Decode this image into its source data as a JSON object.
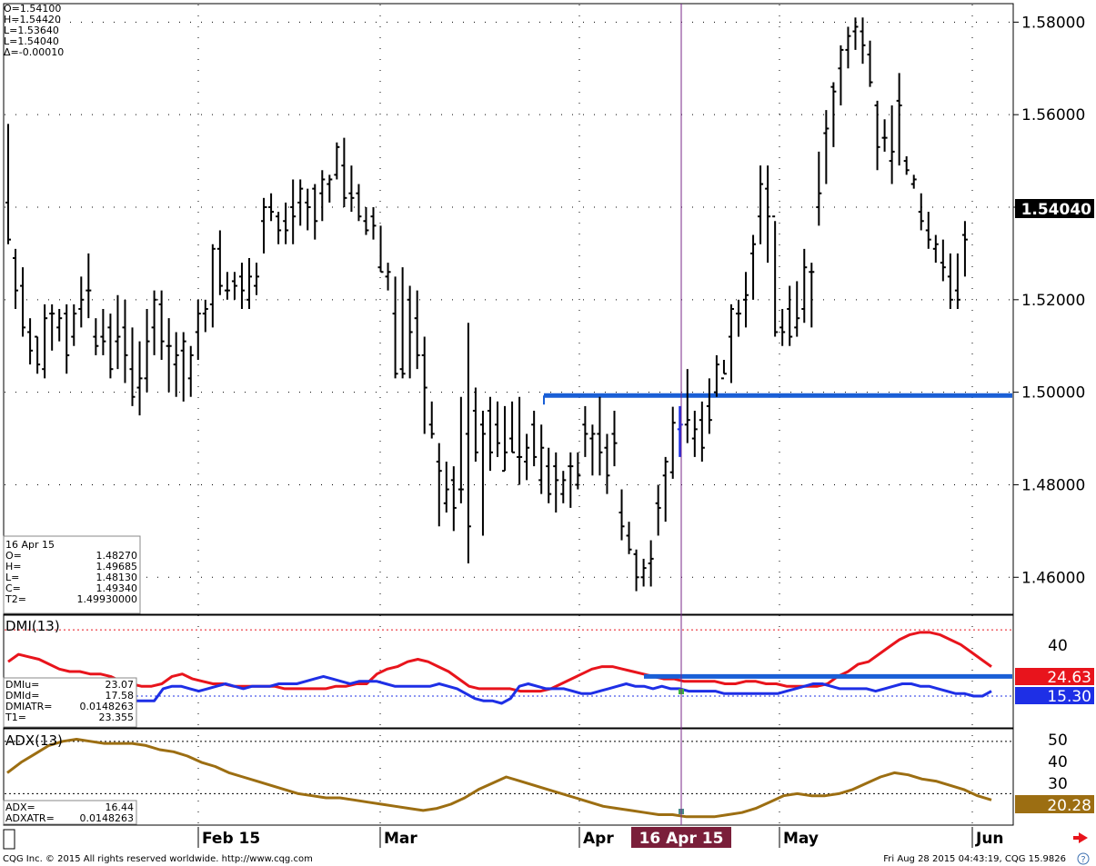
{
  "ohlc_readout": {
    "o": "O=1.54100",
    "h": "H=1.54420",
    "l1": "L=1.53640",
    "l2": "L=1.54040",
    "delta": "Δ=-0.00010"
  },
  "cursor_box": {
    "date": "16 Apr 15",
    "rows": [
      {
        "k": "O=",
        "v": "1.48270"
      },
      {
        "k": "H=",
        "v": "1.49685"
      },
      {
        "k": "L=",
        "v": "1.48130"
      },
      {
        "k": "C=",
        "v": "1.49340"
      },
      {
        "k": "T2=",
        "v": "1.49930000"
      }
    ]
  },
  "price_axis": {
    "ticks": [
      "1.58000",
      "1.56000",
      "1.54000",
      "1.52000",
      "1.50000",
      "1.48000",
      "1.46000"
    ],
    "last_price": "1.54040"
  },
  "dmi": {
    "title": "DMI(13)",
    "ticks": [
      "40"
    ],
    "plus_value": "24.63",
    "minus_value": "15.30",
    "rows": [
      {
        "k": "DMIu=",
        "v": "23.07"
      },
      {
        "k": "DMId=",
        "v": "17.58"
      },
      {
        "k": "DMIATR=",
        "v": "0.0148263"
      },
      {
        "k": "T1=",
        "v": "23.355"
      }
    ]
  },
  "adx": {
    "title": "ADX(13)",
    "ticks": [
      "50",
      "40",
      "30"
    ],
    "value": "20.28",
    "rows": [
      {
        "k": "ADX=",
        "v": "16.44"
      },
      {
        "k": "ADXATR=",
        "v": "0.0148263"
      }
    ]
  },
  "time_axis": {
    "labels": [
      "Feb 15",
      "Mar",
      "Apr",
      "May",
      "Jun"
    ],
    "cursor_label": "16 Apr 15"
  },
  "footer": {
    "left": "CQG Inc. © 2015 All rights reserved worldwide. http://www.cqg.com",
    "right": "Fri Aug 28 2015 04:43:19, CQG 15.9826"
  },
  "colors": {
    "bars": "#000000",
    "trendline": "#1a5fd6",
    "dmi_plus": "#e8141c",
    "dmi_minus": "#1e2fe6",
    "adx": "#9c6e12",
    "cursor": "#7a2a8a",
    "cursor_label_bg": "#7a1f3a"
  },
  "chart_data": {
    "type": "ohlc",
    "ylim": [
      1.452,
      1.584
    ],
    "hline": 1.4993,
    "bars": [
      [
        1.541,
        1.558,
        1.532,
        1.533
      ],
      [
        1.529,
        1.531,
        1.518,
        1.522
      ],
      [
        1.523,
        1.527,
        1.512,
        1.514
      ],
      [
        1.513,
        1.516,
        1.506,
        1.509
      ],
      [
        1.512,
        1.512,
        1.504,
        1.506
      ],
      [
        1.505,
        1.519,
        1.503,
        1.516
      ],
      [
        1.517,
        1.519,
        1.509,
        1.517
      ],
      [
        1.514,
        1.518,
        1.511,
        1.516
      ],
      [
        1.517,
        1.519,
        1.504,
        1.508
      ],
      [
        1.512,
        1.519,
        1.51,
        1.517
      ],
      [
        1.518,
        1.525,
        1.514,
        1.52
      ],
      [
        1.522,
        1.53,
        1.516,
        1.522
      ],
      [
        1.512,
        1.516,
        1.508,
        1.51
      ],
      [
        1.512,
        1.518,
        1.508,
        1.511
      ],
      [
        1.514,
        1.517,
        1.503,
        1.505
      ],
      [
        1.511,
        1.521,
        1.505,
        1.512
      ],
      [
        1.514,
        1.52,
        1.502,
        1.508
      ],
      [
        1.505,
        1.514,
        1.497,
        1.499
      ],
      [
        1.501,
        1.511,
        1.495,
        1.503
      ],
      [
        1.503,
        1.518,
        1.5,
        1.511
      ],
      [
        1.514,
        1.522,
        1.508,
        1.52
      ],
      [
        1.519,
        1.522,
        1.507,
        1.511
      ],
      [
        1.51,
        1.516,
        1.5,
        1.51
      ],
      [
        1.506,
        1.513,
        1.499,
        1.508
      ],
      [
        1.509,
        1.513,
        1.498,
        1.511
      ],
      [
        1.503,
        1.51,
        1.499,
        1.508
      ],
      [
        1.513,
        1.52,
        1.507,
        1.517
      ],
      [
        1.517,
        1.52,
        1.513,
        1.518
      ],
      [
        1.519,
        1.532,
        1.514,
        1.531
      ],
      [
        1.531,
        1.535,
        1.521,
        1.523
      ],
      [
        1.522,
        1.526,
        1.52,
        1.522
      ],
      [
        1.524,
        1.526,
        1.52,
        1.523
      ],
      [
        1.525,
        1.528,
        1.518,
        1.522
      ],
      [
        1.52,
        1.529,
        1.518,
        1.525
      ],
      [
        1.523,
        1.528,
        1.521,
        1.525
      ],
      [
        1.537,
        1.542,
        1.53,
        1.54
      ],
      [
        1.54,
        1.543,
        1.537,
        1.539
      ],
      [
        1.538,
        1.539,
        1.532,
        1.535
      ],
      [
        1.537,
        1.541,
        1.532,
        1.535
      ],
      [
        1.54,
        1.546,
        1.532,
        1.538
      ],
      [
        1.541,
        1.546,
        1.536,
        1.544
      ],
      [
        1.541,
        1.544,
        1.535,
        1.54
      ],
      [
        1.544,
        1.545,
        1.533,
        1.537
      ],
      [
        1.543,
        1.548,
        1.537,
        1.546
      ],
      [
        1.545,
        1.547,
        1.541,
        1.546
      ],
      [
        1.547,
        1.554,
        1.546,
        1.553
      ],
      [
        1.549,
        1.555,
        1.54,
        1.542
      ],
      [
        1.543,
        1.549,
        1.539,
        1.542
      ],
      [
        1.543,
        1.545,
        1.537,
        1.538
      ],
      [
        1.537,
        1.54,
        1.534,
        1.535
      ],
      [
        1.538,
        1.54,
        1.533,
        1.536
      ],
      [
        1.527,
        1.536,
        1.526,
        1.526
      ],
      [
        1.525,
        1.528,
        1.522,
        1.526
      ],
      [
        1.517,
        1.525,
        1.503,
        1.504
      ],
      [
        1.505,
        1.527,
        1.503,
        1.504
      ],
      [
        1.52,
        1.523,
        1.503,
        1.513
      ],
      [
        1.516,
        1.522,
        1.505,
        1.508
      ],
      [
        1.508,
        1.512,
        1.491,
        1.501
      ],
      [
        1.493,
        1.498,
        1.49,
        1.491
      ],
      [
        1.485,
        1.489,
        1.471,
        1.483
      ],
      [
        1.476,
        1.485,
        1.474,
        1.479
      ],
      [
        1.481,
        1.484,
        1.47,
        1.475
      ],
      [
        1.479,
        1.499,
        1.476,
        1.479
      ],
      [
        1.491,
        1.515,
        1.463,
        1.471
      ],
      [
        1.496,
        1.501,
        1.485,
        1.487
      ],
      [
        1.493,
        1.496,
        1.469,
        1.491
      ],
      [
        1.496,
        1.499,
        1.483,
        1.487
      ],
      [
        1.493,
        1.498,
        1.486,
        1.489
      ],
      [
        1.483,
        1.497,
        1.483,
        1.487
      ],
      [
        1.49,
        1.498,
        1.487,
        1.487
      ],
      [
        1.486,
        1.499,
        1.48,
        1.486
      ],
      [
        1.485,
        1.491,
        1.481,
        1.488
      ],
      [
        1.493,
        1.496,
        1.484,
        1.486
      ],
      [
        1.481,
        1.493,
        1.478,
        1.488
      ],
      [
        1.484,
        1.488,
        1.476,
        1.478
      ],
      [
        1.484,
        1.487,
        1.474,
        1.481
      ],
      [
        1.478,
        1.483,
        1.476,
        1.481
      ],
      [
        1.484,
        1.487,
        1.475,
        1.484
      ],
      [
        1.48,
        1.487,
        1.479,
        1.482
      ],
      [
        1.493,
        1.497,
        1.486,
        1.491
      ],
      [
        1.49,
        1.493,
        1.482,
        1.491
      ],
      [
        1.491,
        1.499,
        1.482,
        1.487
      ],
      [
        1.488,
        1.491,
        1.478,
        1.482
      ],
      [
        1.491,
        1.496,
        1.484,
        1.489
      ],
      [
        1.474,
        1.479,
        1.468,
        1.471
      ],
      [
        1.469,
        1.472,
        1.465,
        1.466
      ],
      [
        1.465,
        1.466,
        1.457,
        1.46
      ],
      [
        1.46,
        1.464,
        1.458,
        1.462
      ],
      [
        1.463,
        1.468,
        1.458,
        1.464
      ],
      [
        1.476,
        1.48,
        1.469,
        1.475
      ],
      [
        1.482,
        1.486,
        1.472,
        1.485
      ],
      [
        1.4827,
        1.49685,
        1.4813,
        1.4934
      ],
      [
        1.492,
        1.497,
        1.486,
        1.493
      ],
      [
        1.493,
        1.505,
        1.489,
        1.494
      ],
      [
        1.49,
        1.496,
        1.486,
        1.492
      ],
      [
        1.494,
        1.498,
        1.485,
        1.488
      ],
      [
        1.497,
        1.503,
        1.491,
        1.494
      ],
      [
        1.5,
        1.508,
        1.499,
        1.506
      ],
      [
        1.503,
        1.507,
        1.504,
        1.504
      ],
      [
        1.512,
        1.519,
        1.502,
        1.518
      ],
      [
        1.517,
        1.52,
        1.512,
        1.517
      ],
      [
        1.52,
        1.526,
        1.514,
        1.521
      ],
      [
        1.53,
        1.534,
        1.52,
        1.532
      ],
      [
        1.538,
        1.549,
        1.532,
        1.545
      ],
      [
        1.544,
        1.549,
        1.528,
        1.538
      ],
      [
        1.538,
        1.537,
        1.512,
        1.513
      ],
      [
        1.514,
        1.518,
        1.51,
        1.513
      ],
      [
        1.518,
        1.523,
        1.51,
        1.512
      ],
      [
        1.514,
        1.524,
        1.512,
        1.516
      ],
      [
        1.518,
        1.531,
        1.515,
        1.527
      ],
      [
        1.526,
        1.528,
        1.514,
        1.526
      ],
      [
        1.54,
        1.552,
        1.536,
        1.543
      ],
      [
        1.556,
        1.561,
        1.545,
        1.557
      ],
      [
        1.566,
        1.567,
        1.553,
        1.565
      ],
      [
        1.57,
        1.575,
        1.562,
        1.574
      ],
      [
        1.574,
        1.579,
        1.57,
        1.577
      ],
      [
        1.578,
        1.581,
        1.574,
        1.579
      ],
      [
        1.578,
        1.581,
        1.571,
        1.575
      ],
      [
        1.573,
        1.576,
        1.566,
        1.567
      ],
      [
        1.562,
        1.563,
        1.548,
        1.553
      ],
      [
        1.555,
        1.559,
        1.552,
        1.555
      ],
      [
        1.55,
        1.562,
        1.545,
        1.552
      ],
      [
        1.563,
        1.569,
        1.549,
        1.562
      ],
      [
        1.55,
        1.551,
        1.547,
        1.548
      ],
      [
        1.545,
        1.547,
        1.544,
        1.546
      ],
      [
        1.539,
        1.543,
        1.535,
        1.537
      ],
      [
        1.535,
        1.539,
        1.531,
        1.533
      ],
      [
        1.531,
        1.534,
        1.528,
        1.532
      ],
      [
        1.528,
        1.533,
        1.524,
        1.527
      ],
      [
        1.525,
        1.53,
        1.518,
        1.52
      ],
      [
        1.522,
        1.53,
        1.518,
        1.52
      ],
      [
        1.534,
        1.537,
        1.525,
        1.533
      ]
    ],
    "dmi_plus": [
      27,
      30,
      29,
      28,
      26,
      24,
      23,
      23,
      22,
      22,
      21,
      19,
      18,
      17,
      17,
      18,
      21,
      22,
      20,
      19,
      18,
      18,
      17,
      17,
      17,
      17,
      17,
      16,
      16,
      16,
      16,
      16,
      17,
      17,
      18,
      18,
      22,
      24,
      25,
      27,
      28,
      27,
      25,
      23,
      20,
      17,
      16,
      16,
      16,
      16,
      15,
      15,
      15,
      16,
      18,
      20,
      22,
      24,
      25,
      25,
      24,
      23,
      22,
      21,
      20,
      20,
      19,
      19,
      19,
      19,
      18,
      18,
      19,
      19,
      18,
      18,
      17,
      17,
      17,
      17,
      18,
      21,
      23,
      26,
      27,
      30,
      33,
      36,
      38,
      39,
      39,
      38,
      36,
      34,
      31,
      28,
      25
    ],
    "dmi_minus": [
      11,
      11,
      11,
      16,
      17,
      17,
      16,
      15,
      16,
      17,
      18,
      17,
      16,
      17,
      17,
      17,
      18,
      18,
      18,
      19,
      20,
      21,
      20,
      19,
      18,
      19,
      19,
      19,
      18,
      17,
      17,
      17,
      17,
      17,
      18,
      17,
      16,
      14,
      12,
      11,
      11,
      10,
      12,
      17,
      18,
      17,
      16,
      16,
      16,
      15,
      14,
      14,
      15,
      16,
      17,
      18,
      17,
      17,
      16,
      17,
      16,
      16,
      15,
      15,
      15,
      15,
      14,
      14,
      14,
      14,
      14,
      14,
      14,
      15,
      16,
      17,
      18,
      18,
      17,
      16,
      16,
      16,
      16,
      15,
      16,
      17,
      18,
      18,
      17,
      17,
      16,
      15,
      14,
      14,
      13,
      13,
      15
    ],
    "dmi_hline": 21,
    "adx": [
      35,
      40,
      44,
      48,
      50,
      51,
      50,
      49,
      49,
      49,
      48,
      46,
      45,
      43,
      40,
      38,
      35,
      33,
      31,
      29,
      27,
      25,
      24,
      23,
      23,
      22,
      21,
      20,
      19,
      18,
      17,
      18,
      20,
      23,
      27,
      30,
      33,
      31,
      29,
      27,
      25,
      23,
      21,
      19,
      18,
      17,
      16,
      15,
      15,
      14,
      14,
      14,
      15,
      16,
      18,
      21,
      24,
      25,
      24,
      24,
      25,
      27,
      30,
      33,
      35,
      34,
      32,
      31,
      29,
      27,
      24,
      22
    ]
  }
}
